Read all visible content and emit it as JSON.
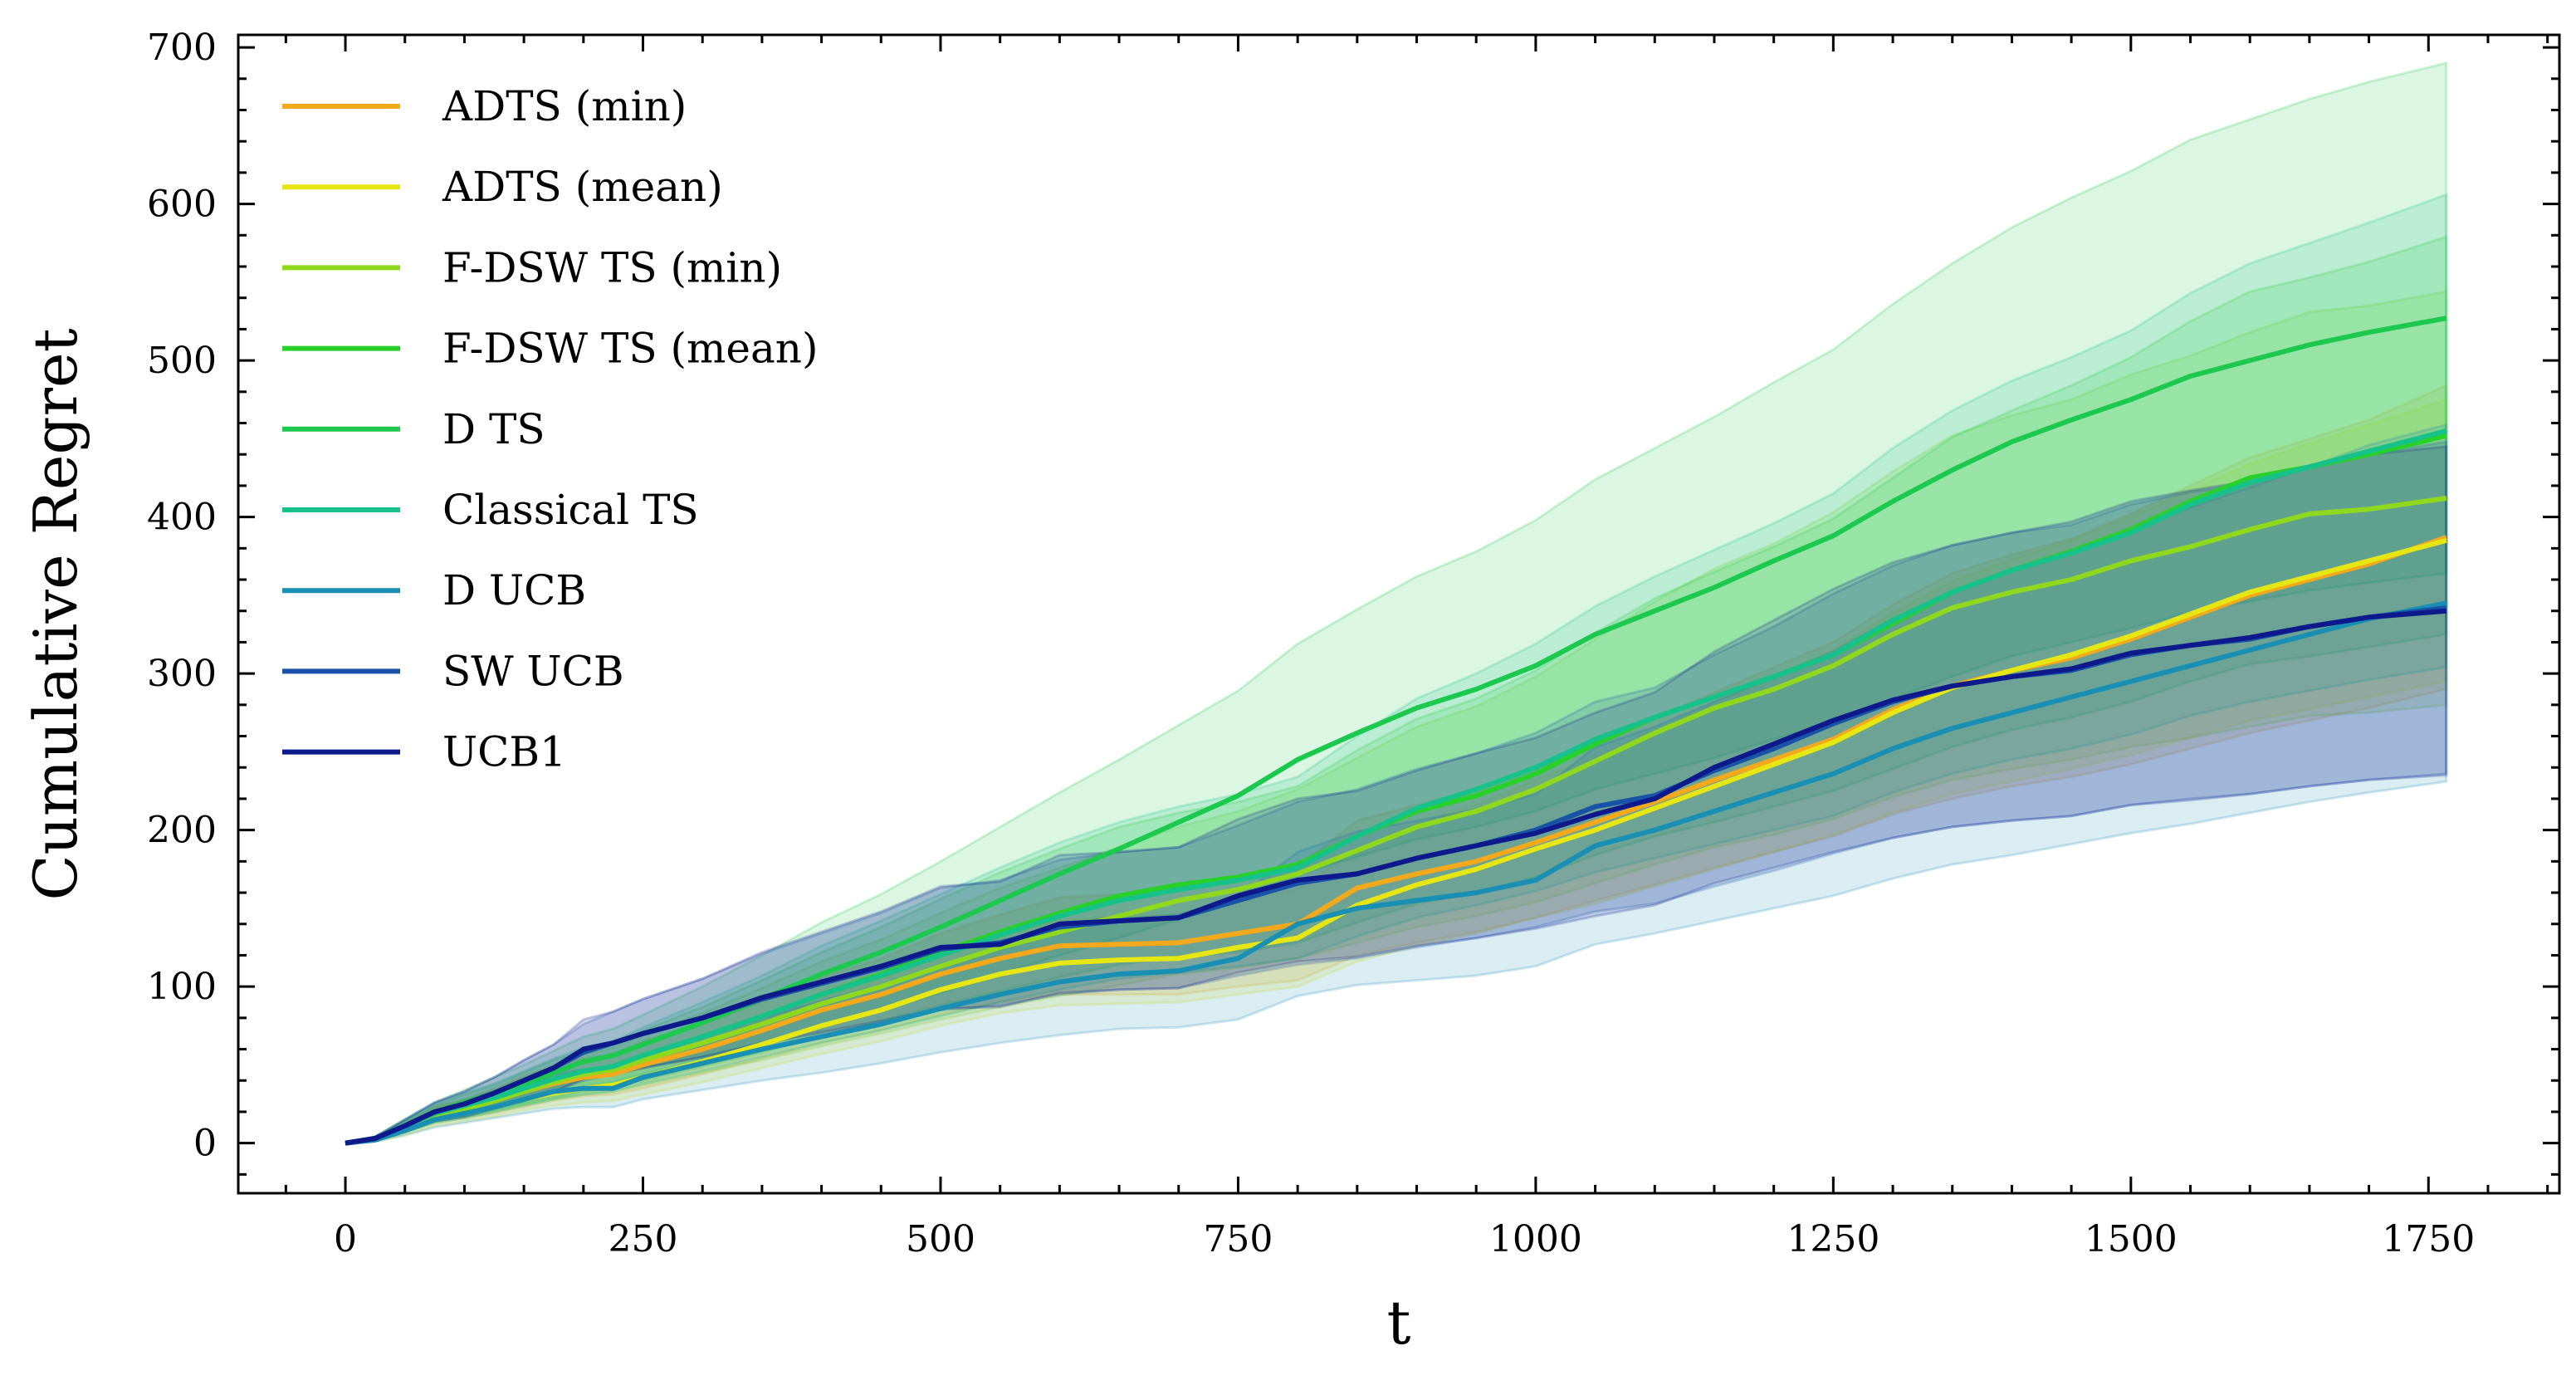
{
  "chart_data": {
    "type": "line",
    "title": "",
    "xlabel": "t",
    "ylabel": "Cumulative Regret",
    "xlim": [
      -90,
      1860
    ],
    "ylim": [
      -32,
      708
    ],
    "xticks": [
      0,
      250,
      500,
      750,
      1000,
      1250,
      1500,
      1750
    ],
    "yticks": [
      0,
      100,
      200,
      300,
      400,
      500,
      600,
      700
    ],
    "xtick_labels": [
      "0",
      "250",
      "500",
      "750",
      "1000",
      "1250",
      "1500",
      "1750"
    ],
    "ytick_labels": [
      "0",
      "100",
      "200",
      "300",
      "400",
      "500",
      "600",
      "700"
    ],
    "grid": false,
    "legend_position": "top-left",
    "shaded_band": "±1 std (approx.)",
    "x": [
      0,
      25,
      50,
      75,
      100,
      125,
      150,
      175,
      200,
      225,
      250,
      300,
      350,
      400,
      450,
      500,
      550,
      600,
      650,
      700,
      750,
      800,
      850,
      900,
      950,
      1000,
      1050,
      1100,
      1150,
      1200,
      1250,
      1300,
      1350,
      1400,
      1450,
      1500,
      1550,
      1600,
      1650,
      1700,
      1765
    ],
    "series": [
      {
        "name": "ADTS (min)",
        "color": "#f4a81c",
        "values": [
          0,
          3,
          10,
          18,
          22,
          27,
          33,
          38,
          42,
          44,
          50,
          60,
          72,
          85,
          95,
          108,
          118,
          126,
          127,
          128,
          134,
          140,
          163,
          172,
          180,
          192,
          205,
          218,
          232,
          245,
          258,
          277,
          292,
          302,
          310,
          322,
          336,
          350,
          360,
          370,
          387
        ],
        "lower": [
          0,
          2,
          7,
          13,
          16,
          19,
          23,
          27,
          30,
          31,
          35,
          44,
          54,
          64,
          72,
          82,
          90,
          95,
          95,
          95,
          100,
          104,
          120,
          128,
          135,
          144,
          155,
          165,
          176,
          186,
          196,
          210,
          220,
          228,
          234,
          242,
          252,
          262,
          270,
          278,
          290
        ],
        "upper": [
          0,
          4,
          13,
          23,
          28,
          35,
          43,
          49,
          54,
          57,
          65,
          76,
          90,
          106,
          118,
          134,
          146,
          157,
          159,
          161,
          168,
          176,
          206,
          216,
          225,
          240,
          255,
          271,
          288,
          304,
          320,
          344,
          364,
          376,
          386,
          402,
          420,
          438,
          450,
          462,
          484
        ]
      },
      {
        "name": "ADTS (mean)",
        "color": "#e6e612",
        "values": [
          0,
          2,
          8,
          15,
          19,
          23,
          28,
          32,
          35,
          37,
          42,
          52,
          63,
          75,
          85,
          98,
          108,
          115,
          117,
          118,
          125,
          131,
          152,
          165,
          175,
          188,
          200,
          214,
          228,
          242,
          256,
          275,
          291,
          302,
          312,
          324,
          338,
          352,
          362,
          372,
          385
        ],
        "lower": [
          0,
          1,
          5,
          11,
          14,
          17,
          21,
          24,
          26,
          27,
          31,
          39,
          48,
          57,
          65,
          75,
          83,
          88,
          89,
          90,
          95,
          100,
          116,
          126,
          134,
          144,
          153,
          164,
          175,
          186,
          197,
          211,
          223,
          231,
          239,
          248,
          259,
          270,
          277,
          285,
          295
        ],
        "upper": [
          0,
          3,
          11,
          19,
          24,
          29,
          35,
          40,
          44,
          47,
          53,
          65,
          78,
          93,
          105,
          121,
          133,
          142,
          145,
          146,
          155,
          162,
          188,
          204,
          216,
          232,
          247,
          264,
          281,
          298,
          315,
          339,
          359,
          373,
          385,
          400,
          417,
          434,
          447,
          459,
          475
        ]
      },
      {
        "name": "F-DSW TS (min)",
        "color": "#8fd81e",
        "values": [
          0,
          3,
          10,
          18,
          22,
          27,
          33,
          39,
          44,
          47,
          53,
          64,
          76,
          89,
          100,
          113,
          125,
          135,
          145,
          155,
          162,
          172,
          187,
          202,
          212,
          226,
          244,
          262,
          278,
          290,
          305,
          325,
          342,
          352,
          360,
          372,
          381,
          392,
          402,
          405,
          412
        ],
        "lower": [
          0,
          2,
          7,
          13,
          16,
          20,
          24,
          28,
          31,
          33,
          37,
          45,
          53,
          62,
          70,
          79,
          87,
          94,
          101,
          108,
          112,
          118,
          128,
          138,
          145,
          154,
          166,
          178,
          189,
          197,
          207,
          221,
          232,
          239,
          245,
          253,
          259,
          266,
          273,
          275,
          280
        ],
        "upper": [
          0,
          4,
          13,
          23,
          28,
          34,
          42,
          50,
          57,
          61,
          69,
          83,
          99,
          116,
          130,
          147,
          163,
          176,
          189,
          202,
          212,
          226,
          246,
          266,
          279,
          298,
          322,
          346,
          367,
          383,
          403,
          429,
          452,
          465,
          475,
          491,
          503,
          518,
          531,
          535,
          544
        ]
      },
      {
        "name": "F-DSW TS (mean)",
        "color": "#28d02a",
        "values": [
          0,
          3,
          11,
          19,
          24,
          29,
          35,
          41,
          46,
          49,
          56,
          68,
          81,
          95,
          108,
          122,
          135,
          147,
          158,
          165,
          170,
          178,
          196,
          212,
          222,
          236,
          255,
          272,
          285,
          298,
          312,
          332,
          352,
          366,
          378,
          392,
          410,
          425,
          432,
          440,
          452
        ],
        "lower": [
          0,
          2,
          8,
          14,
          17,
          21,
          25,
          29,
          33,
          35,
          40,
          49,
          58,
          68,
          78,
          88,
          97,
          106,
          114,
          119,
          122,
          128,
          141,
          153,
          160,
          170,
          184,
          196,
          205,
          215,
          225,
          239,
          253,
          264,
          272,
          282,
          295,
          306,
          311,
          317,
          325
        ],
        "upper": [
          0,
          4,
          14,
          24,
          31,
          37,
          45,
          53,
          59,
          63,
          72,
          87,
          104,
          122,
          138,
          156,
          173,
          188,
          202,
          211,
          218,
          228,
          251,
          271,
          284,
          302,
          326,
          348,
          365,
          381,
          399,
          425,
          451,
          468,
          484,
          502,
          525,
          544,
          553,
          563,
          579
        ]
      },
      {
        "name": "D TS",
        "color": "#1cc94e",
        "values": [
          0,
          3,
          11,
          20,
          26,
          32,
          38,
          45,
          52,
          56,
          63,
          77,
          92,
          108,
          122,
          138,
          155,
          172,
          188,
          205,
          222,
          245,
          262,
          278,
          290,
          305,
          325,
          340,
          355,
          372,
          388,
          410,
          430,
          448,
          462,
          475,
          490,
          500,
          510,
          518,
          527
        ],
        "lower": [
          0,
          2,
          7,
          14,
          18,
          22,
          26,
          31,
          36,
          39,
          44,
          54,
          64,
          75,
          85,
          96,
          108,
          120,
          131,
          143,
          155,
          171,
          183,
          194,
          202,
          212,
          226,
          236,
          246,
          258,
          269,
          284,
          298,
          311,
          320,
          329,
          339,
          346,
          353,
          358,
          364
        ],
        "upper": [
          0,
          4,
          15,
          26,
          34,
          42,
          50,
          59,
          68,
          73,
          82,
          100,
          120,
          141,
          159,
          180,
          202,
          224,
          245,
          267,
          289,
          319,
          341,
          362,
          378,
          398,
          424,
          444,
          464,
          486,
          507,
          536,
          562,
          585,
          604,
          621,
          641,
          654,
          667,
          678,
          690
        ]
      },
      {
        "name": "Classical TS",
        "color": "#16c28a",
        "values": [
          0,
          3,
          11,
          19,
          24,
          29,
          35,
          41,
          46,
          49,
          56,
          68,
          81,
          95,
          107,
          120,
          133,
          145,
          155,
          162,
          168,
          176,
          196,
          214,
          226,
          240,
          258,
          272,
          285,
          298,
          312,
          334,
          352,
          366,
          377,
          390,
          408,
          422,
          432,
          442,
          455
        ],
        "lower": [
          0,
          2,
          7,
          13,
          16,
          20,
          24,
          28,
          31,
          33,
          38,
          46,
          55,
          64,
          72,
          81,
          90,
          98,
          105,
          109,
          113,
          118,
          132,
          144,
          152,
          161,
          173,
          182,
          191,
          200,
          209,
          224,
          236,
          245,
          252,
          261,
          273,
          282,
          289,
          296,
          304
        ],
        "upper": [
          0,
          4,
          15,
          25,
          32,
          38,
          46,
          54,
          61,
          65,
          74,
          90,
          107,
          126,
          142,
          159,
          176,
          192,
          205,
          215,
          223,
          234,
          260,
          284,
          300,
          319,
          343,
          362,
          379,
          396,
          415,
          444,
          468,
          487,
          502,
          519,
          543,
          562,
          575,
          588,
          606
        ]
      },
      {
        "name": "D UCB",
        "color": "#1a8fb4",
        "values": [
          0,
          2,
          8,
          15,
          19,
          23,
          28,
          33,
          35,
          35,
          42,
          51,
          60,
          68,
          76,
          86,
          95,
          103,
          108,
          110,
          118,
          140,
          150,
          155,
          160,
          168,
          190,
          200,
          212,
          224,
          236,
          252,
          265,
          275,
          285,
          295,
          305,
          315,
          325,
          335,
          345
        ],
        "lower": [
          0,
          1,
          5,
          10,
          13,
          16,
          19,
          22,
          23,
          23,
          28,
          34,
          40,
          45,
          51,
          58,
          64,
          69,
          73,
          74,
          79,
          94,
          101,
          104,
          107,
          113,
          127,
          134,
          142,
          150,
          158,
          169,
          178,
          184,
          191,
          198,
          204,
          211,
          218,
          224,
          231
        ],
        "upper": [
          0,
          3,
          11,
          20,
          25,
          30,
          37,
          44,
          47,
          47,
          56,
          68,
          80,
          91,
          101,
          114,
          126,
          137,
          143,
          146,
          157,
          186,
          199,
          206,
          213,
          223,
          253,
          266,
          282,
          298,
          314,
          335,
          352,
          366,
          379,
          392,
          406,
          419,
          432,
          446,
          459
        ]
      },
      {
        "name": "SW UCB",
        "color": "#1853a8",
        "values": [
          0,
          3,
          11,
          20,
          25,
          32,
          40,
          48,
          58,
          64,
          70,
          80,
          92,
          102,
          112,
          124,
          128,
          138,
          142,
          144,
          155,
          166,
          172,
          182,
          190,
          200,
          215,
          222,
          238,
          252,
          268,
          282,
          292,
          298,
          302,
          312,
          318,
          322,
          330,
          336,
          342
        ],
        "lower": [
          0,
          2,
          7,
          14,
          17,
          22,
          27,
          33,
          40,
          44,
          48,
          55,
          63,
          70,
          77,
          85,
          88,
          95,
          98,
          99,
          107,
          114,
          118,
          125,
          131,
          138,
          148,
          153,
          164,
          174,
          185,
          195,
          202,
          206,
          209,
          216,
          220,
          223,
          228,
          232,
          236
        ],
        "upper": [
          0,
          4,
          15,
          26,
          33,
          42,
          53,
          63,
          76,
          84,
          92,
          105,
          121,
          134,
          147,
          163,
          168,
          181,
          186,
          189,
          203,
          218,
          226,
          239,
          249,
          262,
          282,
          291,
          312,
          330,
          351,
          369,
          382,
          390,
          395,
          408,
          416,
          421,
          432,
          440,
          448
        ]
      },
      {
        "name": "UCB1",
        "color": "#0e1a8c",
        "values": [
          0,
          3,
          11,
          20,
          25,
          32,
          40,
          48,
          60,
          64,
          70,
          80,
          93,
          103,
          113,
          125,
          127,
          140,
          142,
          144,
          158,
          168,
          172,
          182,
          190,
          198,
          210,
          220,
          240,
          255,
          270,
          283,
          292,
          298,
          303,
          313,
          318,
          323,
          330,
          336,
          340
        ],
        "lower": [
          0,
          2,
          7,
          14,
          17,
          22,
          27,
          33,
          41,
          44,
          48,
          55,
          64,
          71,
          78,
          86,
          87,
          96,
          98,
          99,
          109,
          116,
          119,
          126,
          131,
          137,
          145,
          152,
          166,
          176,
          186,
          195,
          202,
          206,
          209,
          216,
          219,
          223,
          228,
          232,
          235
        ],
        "upper": [
          0,
          4,
          15,
          26,
          33,
          42,
          53,
          63,
          79,
          84,
          92,
          105,
          122,
          135,
          148,
          164,
          167,
          184,
          186,
          189,
          207,
          220,
          225,
          238,
          249,
          259,
          275,
          288,
          314,
          334,
          354,
          371,
          382,
          390,
          397,
          410,
          417,
          423,
          432,
          440,
          445
        ]
      }
    ]
  }
}
